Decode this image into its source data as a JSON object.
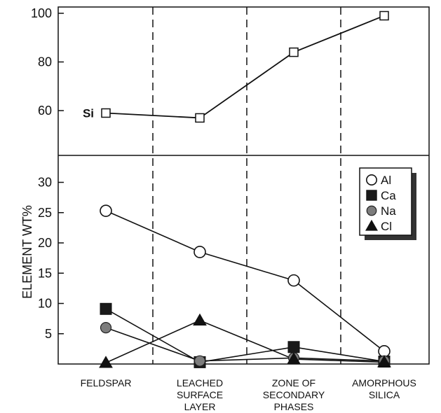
{
  "chart_data": [
    {
      "type": "line",
      "panel": "upper",
      "categories": [
        "FELDSPAR",
        "LEACHED SURFACE LAYER",
        "ZONE OF SECONDARY PHASES",
        "AMORPHOUS SILICA"
      ],
      "ylim": [
        40,
        100
      ],
      "yticks": [
        "60",
        "80",
        "100"
      ],
      "series": [
        {
          "name": "Si",
          "marker": "open-square",
          "values": [
            59,
            57,
            84,
            99
          ]
        }
      ]
    },
    {
      "type": "line",
      "panel": "lower",
      "categories": [
        "FELDSPAR",
        "LEACHED SURFACE LAYER",
        "ZONE OF SECONDARY PHASES",
        "AMORPHOUS SILICA"
      ],
      "ylim": [
        0,
        35
      ],
      "yticks": [
        "5",
        "10",
        "15",
        "20",
        "25",
        "30"
      ],
      "legend_position": "top-right",
      "series": [
        {
          "name": "Al",
          "marker": "open-circle",
          "values": [
            25.3,
            18.5,
            13.8,
            2.1
          ]
        },
        {
          "name": "Ca",
          "marker": "filled-square",
          "values": [
            9.1,
            0.3,
            2.8,
            0.4
          ]
        },
        {
          "name": "Na",
          "marker": "gray-circle",
          "values": [
            6.0,
            0.5,
            1.0,
            0.5
          ]
        },
        {
          "name": "Cl",
          "marker": "filled-triangle",
          "values": [
            0.2,
            7.2,
            0.8,
            0.3
          ]
        }
      ]
    }
  ],
  "ylabel": "ELEMENT WT%",
  "category_label_lines": [
    [
      "FELDSPAR"
    ],
    [
      "LEACHED",
      "SURFACE",
      "LAYER"
    ],
    [
      "ZONE OF",
      "SECONDARY",
      "PHASES"
    ],
    [
      "AMORPHOUS",
      "SILICA"
    ]
  ],
  "legend": [
    {
      "label": "Al",
      "marker": "open-circle"
    },
    {
      "label": "Ca",
      "marker": "filled-square"
    },
    {
      "label": "Na",
      "marker": "gray-circle"
    },
    {
      "label": "Cl",
      "marker": "filled-triangle"
    }
  ]
}
